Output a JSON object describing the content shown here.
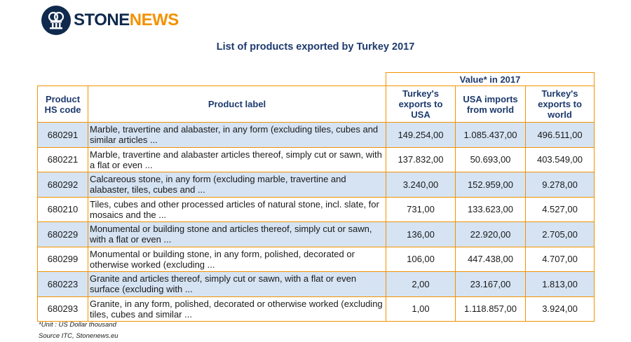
{
  "brand": {
    "part1": "STONE",
    "part2": "NEWS",
    "logo_icon": "stonenews-logo-icon"
  },
  "title": "List of products exported by Turkey 2017",
  "table": {
    "group_header": "Value* in 2017",
    "col_code": "Product HS code",
    "col_label": "Product label",
    "col_tr_usa": "Turkey's exports to USA",
    "col_usa_world": "USA imports from world",
    "col_tr_world": "Turkey's exports to world",
    "rows": [
      {
        "code": "680291",
        "label": "Marble, travertine and alabaster, in any form (excluding tiles, cubes and similar articles ...",
        "tr_usa": "149.254,00",
        "usa_world": "1.085.437,00",
        "tr_world": "496.511,00"
      },
      {
        "code": "680221",
        "label": "Marble, travertine and alabaster articles thereof, simply cut or sawn, with a flat or even ...",
        "tr_usa": "137.832,00",
        "usa_world": "50.693,00",
        "tr_world": "403.549,00"
      },
      {
        "code": "680292",
        "label": "Calcareous stone, in any form (excluding marble, travertine and alabaster, tiles, cubes and ...",
        "tr_usa": "3.240,00",
        "usa_world": "152.959,00",
        "tr_world": "9.278,00"
      },
      {
        "code": "680210",
        "label": "Tiles, cubes and other processed articles of natural stone, incl. slate, for mosaics and the ...",
        "tr_usa": "731,00",
        "usa_world": "133.623,00",
        "tr_world": "4.527,00"
      },
      {
        "code": "680229",
        "label": "Monumental or building stone and articles thereof, simply cut or sawn, with a flat or even ...",
        "tr_usa": "136,00",
        "usa_world": "22.920,00",
        "tr_world": "2.705,00"
      },
      {
        "code": "680299",
        "label": "Monumental or building stone, in any form, polished, decorated or otherwise worked (excluding ...",
        "tr_usa": "106,00",
        "usa_world": "447.438,00",
        "tr_world": "4.707,00"
      },
      {
        "code": "680223",
        "label": "Granite and articles thereof, simply cut or sawn, with a flat or even surface (excluding with ...",
        "tr_usa": "2,00",
        "usa_world": "23.167,00",
        "tr_world": "1.813,00"
      },
      {
        "code": "680293",
        "label": "Granite, in any form, polished, decorated or otherwise worked (excluding tiles, cubes and similar ...",
        "tr_usa": "1,00",
        "usa_world": "1.118.857,00",
        "tr_world": "3.924,00"
      }
    ]
  },
  "footnote_unit": "*Unit : US Dollar thousand",
  "footnote_source": "Source ITC, Stonenews.eu",
  "colors": {
    "navy": "#0f2a4d",
    "orange": "#f39200",
    "row_shade": "#d5e3f3",
    "header_text": "#1d3a6e"
  }
}
